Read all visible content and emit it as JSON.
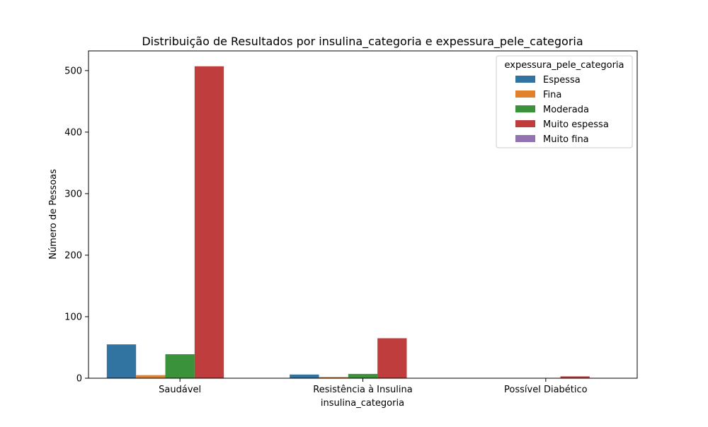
{
  "chart_data": {
    "type": "bar",
    "title": "Distribuição de Resultados por insulina_categoria e expessura_pele_categoria",
    "xlabel": "insulina_categoria",
    "ylabel": "Número de Pessoas",
    "categories": [
      "Saudável",
      "Resistência à Insulina",
      "Possível Diabético"
    ],
    "series": [
      {
        "name": "Espessa",
        "color": "#3274a1",
        "values": [
          55,
          6,
          0
        ]
      },
      {
        "name": "Fina",
        "color": "#e1812c",
        "values": [
          5,
          2,
          0
        ]
      },
      {
        "name": "Moderada",
        "color": "#3a923a",
        "values": [
          39,
          7,
          0
        ]
      },
      {
        "name": "Muito espessa",
        "color": "#c03d3e",
        "values": [
          507,
          65,
          3
        ]
      },
      {
        "name": "Muito fina",
        "color": "#9372b2",
        "values": [
          0,
          0,
          0
        ]
      }
    ],
    "ylim": [
      0,
      532
    ],
    "yticks": [
      0,
      100,
      200,
      300,
      400,
      500
    ],
    "legend": {
      "title": "expessura_pele_categoria",
      "position": "top-right"
    },
    "grid": false
  }
}
